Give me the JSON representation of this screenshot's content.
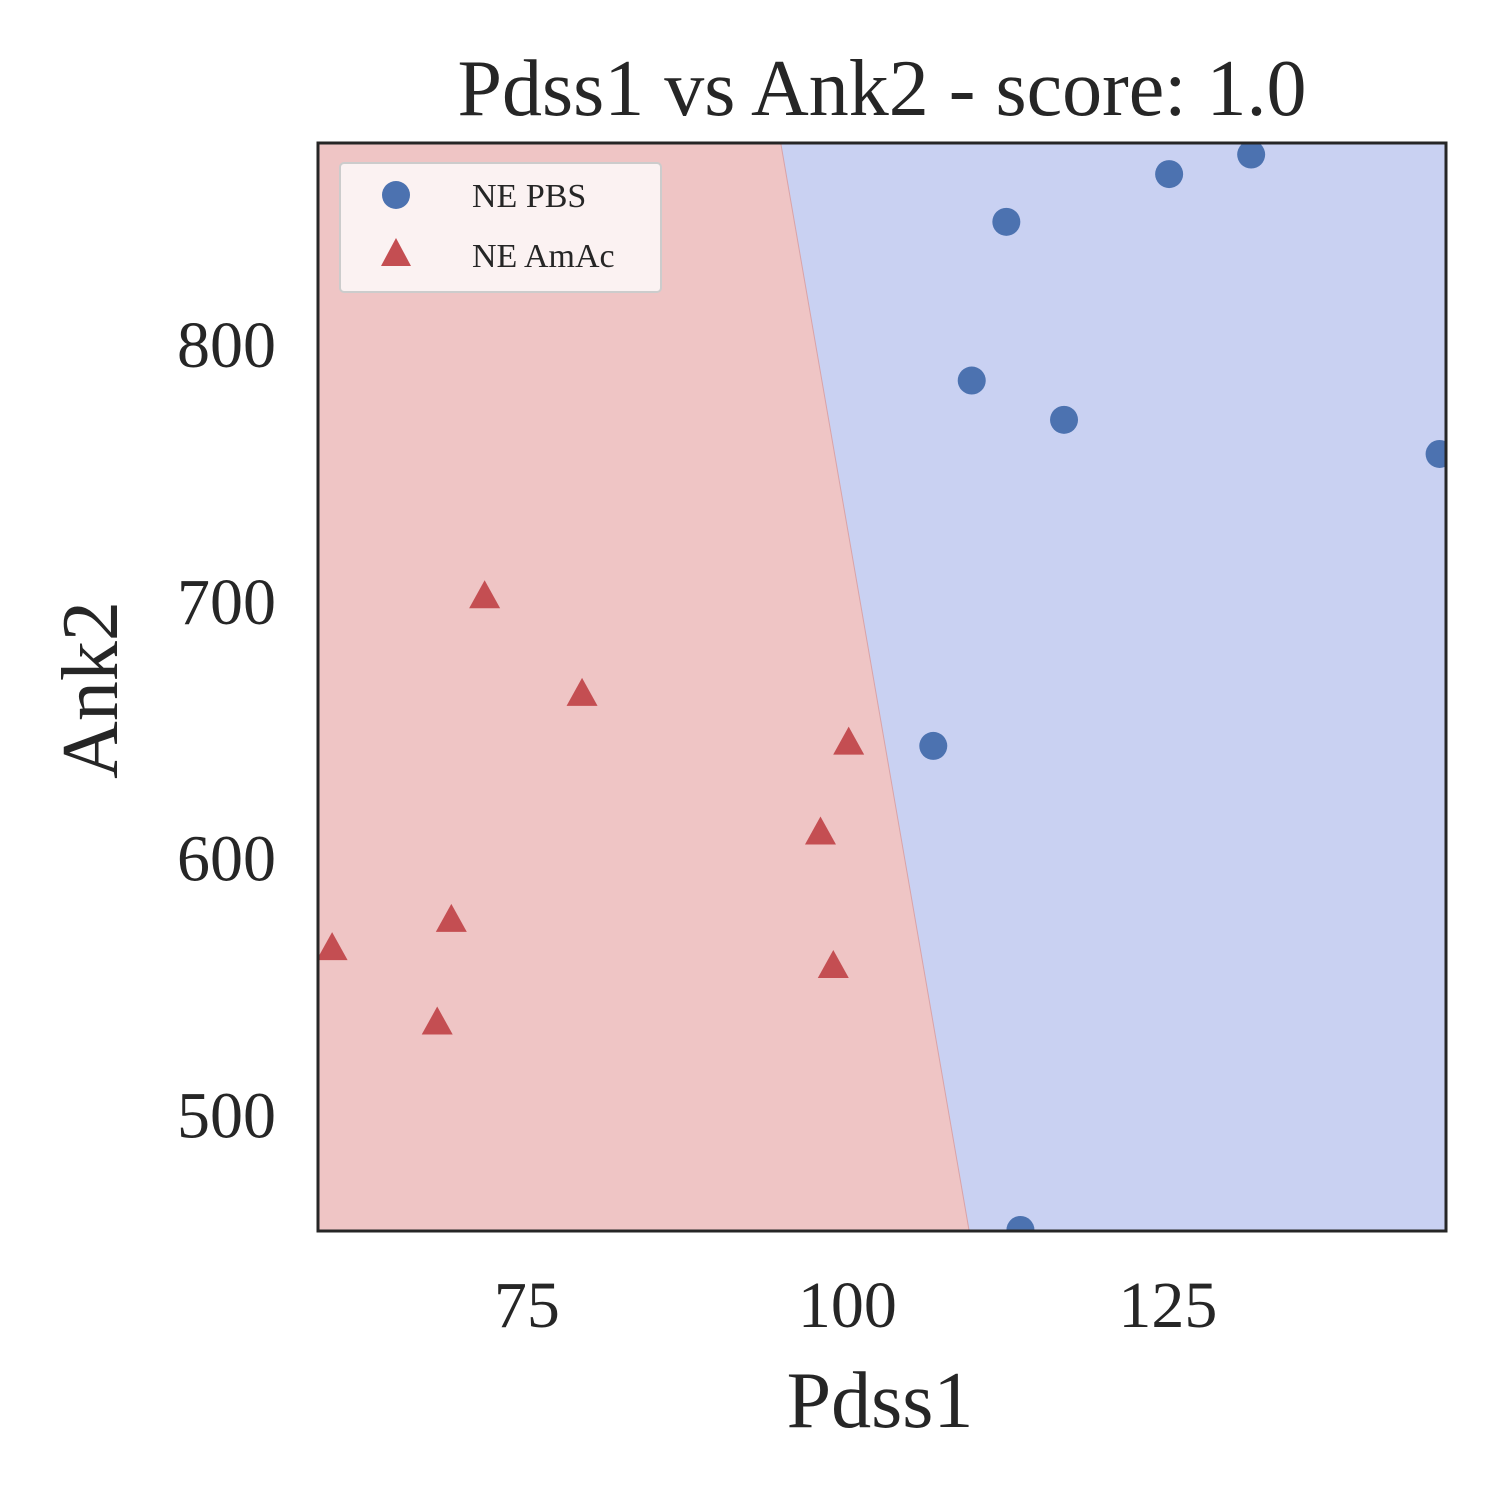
{
  "chart_data": {
    "type": "scatter",
    "title": "Pdss1 vs Ank2 - score: 1.0",
    "xlabel": "Pdss1",
    "ylabel": "Ank2",
    "xlim": [
      58.7,
      146.7
    ],
    "ylim": [
      454.6,
      878.3
    ],
    "x_ticks": [
      75,
      100,
      125
    ],
    "y_ticks": [
      500,
      600,
      700,
      800
    ],
    "grid": false,
    "legend_position": "top-left",
    "decision_boundary": {
      "line": [
        [
          94.8,
          878.3
        ],
        [
          109.5,
          454.6
        ]
      ],
      "left_region_color": "#efc5c5",
      "right_region_color": "#c9d1f2"
    },
    "series": [
      {
        "name": "NE PBS",
        "marker": "circle",
        "color": "#4c72b0",
        "points": [
          [
            125.1,
            866.2
          ],
          [
            131.5,
            873.8
          ],
          [
            112.4,
            847.6
          ],
          [
            109.7,
            785.8
          ],
          [
            116.9,
            770.5
          ],
          [
            146.2,
            757.2
          ],
          [
            106.7,
            643.5
          ],
          [
            113.5,
            455.0
          ]
        ]
      },
      {
        "name": "NE AmAc",
        "marker": "triangle",
        "color": "#c44e52",
        "points": [
          [
            71.7,
            701.0
          ],
          [
            79.3,
            663.0
          ],
          [
            100.1,
            644.0
          ],
          [
            97.9,
            609.0
          ],
          [
            69.1,
            575.0
          ],
          [
            59.8,
            564.0
          ],
          [
            98.9,
            557.0
          ],
          [
            68.0,
            535.0
          ]
        ]
      }
    ]
  }
}
